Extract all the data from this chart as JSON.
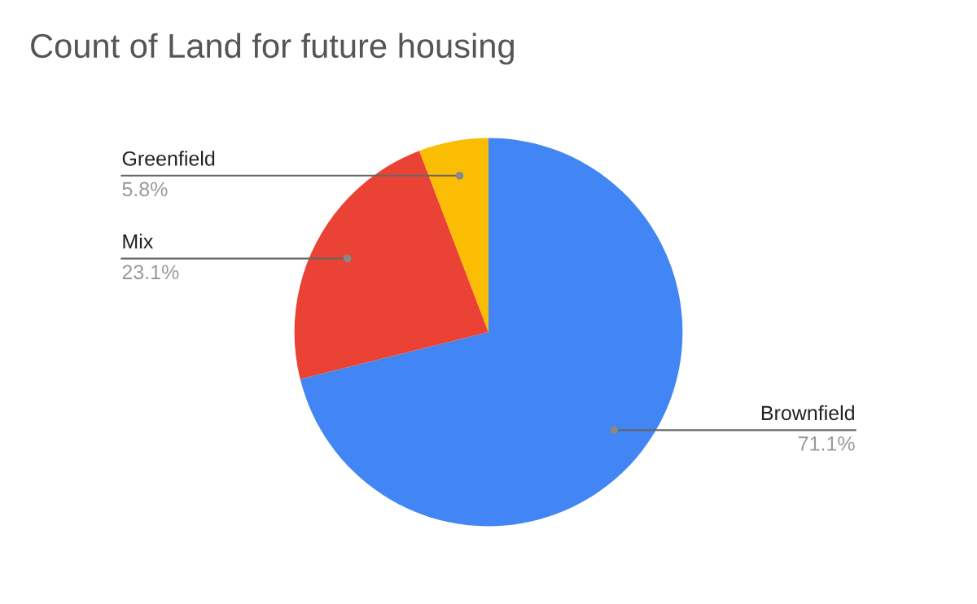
{
  "chart_data": {
    "type": "pie",
    "title": "Count of Land for future housing",
    "categories": [
      "Brownfield",
      "Mix",
      "Greenfield"
    ],
    "values": [
      71.1,
      23.1,
      5.8
    ],
    "colors": [
      "#4285f4",
      "#ea4335",
      "#fbbc04"
    ],
    "value_labels": [
      "71.1%",
      "23.1%",
      "5.8%"
    ],
    "legend": false
  }
}
